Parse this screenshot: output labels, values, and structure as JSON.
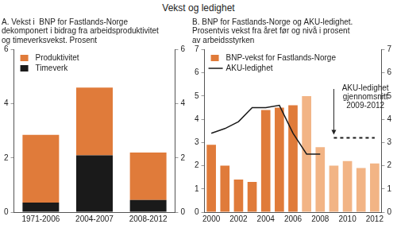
{
  "title": "Vekst og ledighet",
  "chart_data": [
    {
      "type": "bar",
      "title": [
        "A. Vekst i  BNP for Fastlands-Norge",
        "dekomponert i bidrag fra arbeidsproduktivitet",
        "og timeverksvekst. Prosent"
      ],
      "categories": [
        "1971-2006",
        "2004-2007",
        "2008-2012"
      ],
      "stacked": true,
      "series": [
        {
          "name": "Timeverk",
          "color": "#1a1a1a",
          "values": [
            0.35,
            2.1,
            0.45
          ]
        },
        {
          "name": "Produktivitet",
          "color": "#e07b3a",
          "values": [
            2.5,
            2.5,
            1.75
          ]
        }
      ],
      "ylim": [
        0,
        6
      ],
      "yticks": [
        0,
        2,
        4,
        6
      ],
      "y2lim": [
        0,
        6
      ],
      "y2ticks": [
        0,
        2,
        4,
        6
      ],
      "grid": false,
      "legend": "upper left"
    },
    {
      "type": "bar",
      "title": [
        "B. BNP for Fastlands-Norge og AKU-ledighet.",
        "Prosentvis vekst fra året før og nivå i prosent",
        "av arbeidsstyrken"
      ],
      "categories": [
        "2000",
        null,
        "2002",
        null,
        "2004",
        null,
        "2006",
        null,
        "2008",
        null,
        "2010",
        null,
        "2012"
      ],
      "series": [
        {
          "name": "BNP-vekst for Fastlands-Norge",
          "type": "bar",
          "color": "#e07b3a",
          "colors": [
            "#e07b3a",
            "#e07b3a",
            "#e07b3a",
            "#e07b3a",
            "#e07b3a",
            "#e07b3a",
            "#e07b3a",
            "#f2b485",
            "#f2b485",
            "#f2b485",
            "#f2b485",
            "#f2b485",
            "#f2b485"
          ],
          "values": [
            2.9,
            2.0,
            1.4,
            1.3,
            4.4,
            4.5,
            4.6,
            5.0,
            2.8,
            2.0,
            2.2,
            1.9,
            2.1
          ]
        },
        {
          "name": "AKU-ledighet",
          "type": "line",
          "color": "#1a1a1a",
          "line_style": "solid",
          "values": [
            3.4,
            3.6,
            3.9,
            4.5,
            4.5,
            4.6,
            3.4,
            2.5,
            2.5,
            null,
            null,
            null,
            null
          ]
        },
        {
          "name": "AKU-ledighet gjennomsnitt 2009-2012",
          "type": "line",
          "color": "#1a1a1a",
          "line_style": "dashed",
          "values": [
            null,
            null,
            null,
            null,
            null,
            null,
            null,
            null,
            null,
            3.2,
            3.2,
            3.2,
            3.2
          ]
        }
      ],
      "ylim": [
        0,
        7
      ],
      "yticks": [
        0,
        1,
        2,
        3,
        4,
        5,
        6,
        7
      ],
      "y2lim": [
        0,
        7
      ],
      "y2ticks": [
        0,
        1,
        2,
        3,
        4,
        5,
        6,
        7
      ],
      "grid": false,
      "legend": "upper left"
    }
  ]
}
